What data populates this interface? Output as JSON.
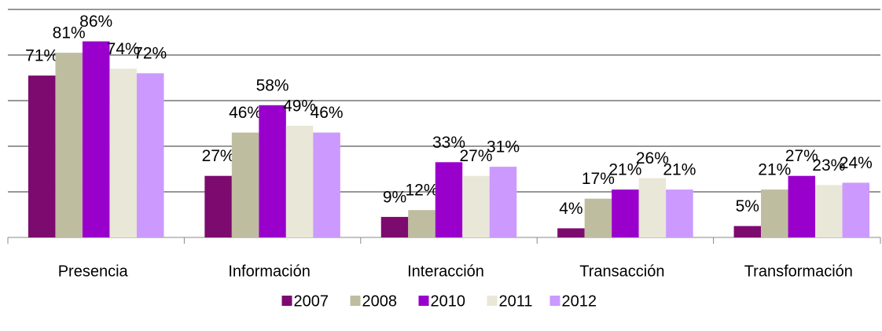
{
  "chart_data": {
    "type": "bar",
    "categories": [
      "Presencia",
      "Información",
      "Interacción",
      "Transacción",
      "Transformación"
    ],
    "series": [
      {
        "name": "2007",
        "color": "#7d0a6f",
        "values": [
          71,
          27,
          9,
          4,
          5
        ],
        "value_labels": [
          "71%",
          "27%",
          "9%",
          "4%",
          "5%"
        ]
      },
      {
        "name": "2008",
        "color": "#bfbd9f",
        "values": [
          81,
          46,
          12,
          17,
          21
        ],
        "value_labels": [
          "81%",
          "46%",
          "12%",
          "17%",
          "21%"
        ]
      },
      {
        "name": "2010",
        "color": "#9a00cc",
        "values": [
          86,
          58,
          33,
          21,
          27
        ],
        "value_labels": [
          "86%",
          "58%",
          "33%",
          "21%",
          "27%"
        ]
      },
      {
        "name": "2011",
        "color": "#e9e7d7",
        "values": [
          74,
          49,
          27,
          26,
          23
        ],
        "value_labels": [
          "74%",
          "49%",
          "27%",
          "26%",
          "23%"
        ]
      },
      {
        "name": "2012",
        "color": "#cc99ff",
        "values": [
          72,
          46,
          31,
          21,
          24
        ],
        "value_labels": [
          "72%",
          "46%",
          "31%",
          "21%",
          "24%"
        ]
      }
    ],
    "ylim": [
      0,
      100
    ],
    "yticks": [
      0,
      20,
      40,
      60,
      80,
      100
    ],
    "grid": true,
    "legend": "bottom"
  }
}
